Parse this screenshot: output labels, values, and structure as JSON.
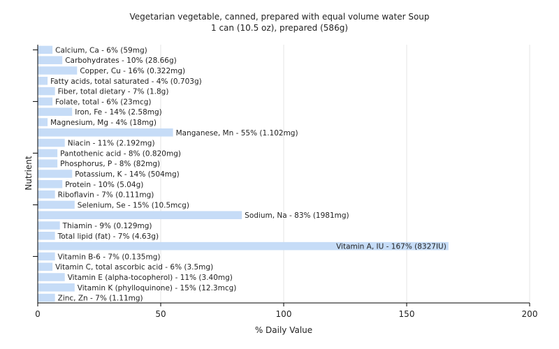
{
  "chart_data": {
    "type": "bar",
    "orientation": "horizontal",
    "title": "Vegetarian vegetable, canned, prepared with equal volume water Soup",
    "subtitle": "1 can (10.5 oz), prepared (586g)",
    "xlabel": "% Daily Value",
    "ylabel": "Nutrient",
    "xlim": [
      0,
      200
    ],
    "xticks": [
      0,
      50,
      100,
      150,
      200
    ],
    "grid": true,
    "bar_color": "#c6dcf7",
    "categories": [
      "Calcium, Ca",
      "Carbohydrates",
      "Copper, Cu",
      "Fatty acids, total saturated",
      "Fiber, total dietary",
      "Folate, total",
      "Iron, Fe",
      "Magnesium, Mg",
      "Manganese, Mn",
      "Niacin",
      "Pantothenic acid",
      "Phosphorus, P",
      "Potassium, K",
      "Protein",
      "Riboflavin",
      "Selenium, Se",
      "Sodium, Na",
      "Thiamin",
      "Total lipid (fat)",
      "Vitamin A, IU",
      "Vitamin B-6",
      "Vitamin C, total ascorbic acid",
      "Vitamin E (alpha-tocopherol)",
      "Vitamin K (phylloquinone)",
      "Zinc, Zn"
    ],
    "values": [
      6,
      10,
      16,
      4,
      7,
      6,
      14,
      4,
      55,
      11,
      8,
      8,
      14,
      10,
      7,
      15,
      83,
      9,
      7,
      167,
      7,
      6,
      11,
      15,
      7
    ],
    "labels": [
      "Calcium, Ca - 6% (59mg)",
      "Carbohydrates - 10% (28.66g)",
      "Copper, Cu - 16% (0.322mg)",
      "Fatty acids, total saturated - 4% (0.703g)",
      "Fiber, total dietary - 7% (1.8g)",
      "Folate, total - 6% (23mcg)",
      "Iron, Fe - 14% (2.58mg)",
      "Magnesium, Mg - 4% (18mg)",
      "Manganese, Mn - 55% (1.102mg)",
      "Niacin - 11% (2.192mg)",
      "Pantothenic acid - 8% (0.820mg)",
      "Phosphorus, P - 8% (82mg)",
      "Potassium, K - 14% (504mg)",
      "Protein - 10% (5.04g)",
      "Riboflavin - 7% (0.111mg)",
      "Selenium, Se - 15% (10.5mcg)",
      "Sodium, Na - 83% (1981mg)",
      "Thiamin - 9% (0.129mg)",
      "Total lipid (fat) - 7% (4.63g)",
      "Vitamin A, IU - 167% (8327IU)",
      "Vitamin B-6 - 7% (0.135mg)",
      "Vitamin C, total ascorbic acid - 6% (3.5mg)",
      "Vitamin E (alpha-tocopherol) - 11% (3.40mg)",
      "Vitamin K (phylloquinone) - 15% (12.3mcg)",
      "Zinc, Zn - 7% (1.11mg)"
    ]
  }
}
